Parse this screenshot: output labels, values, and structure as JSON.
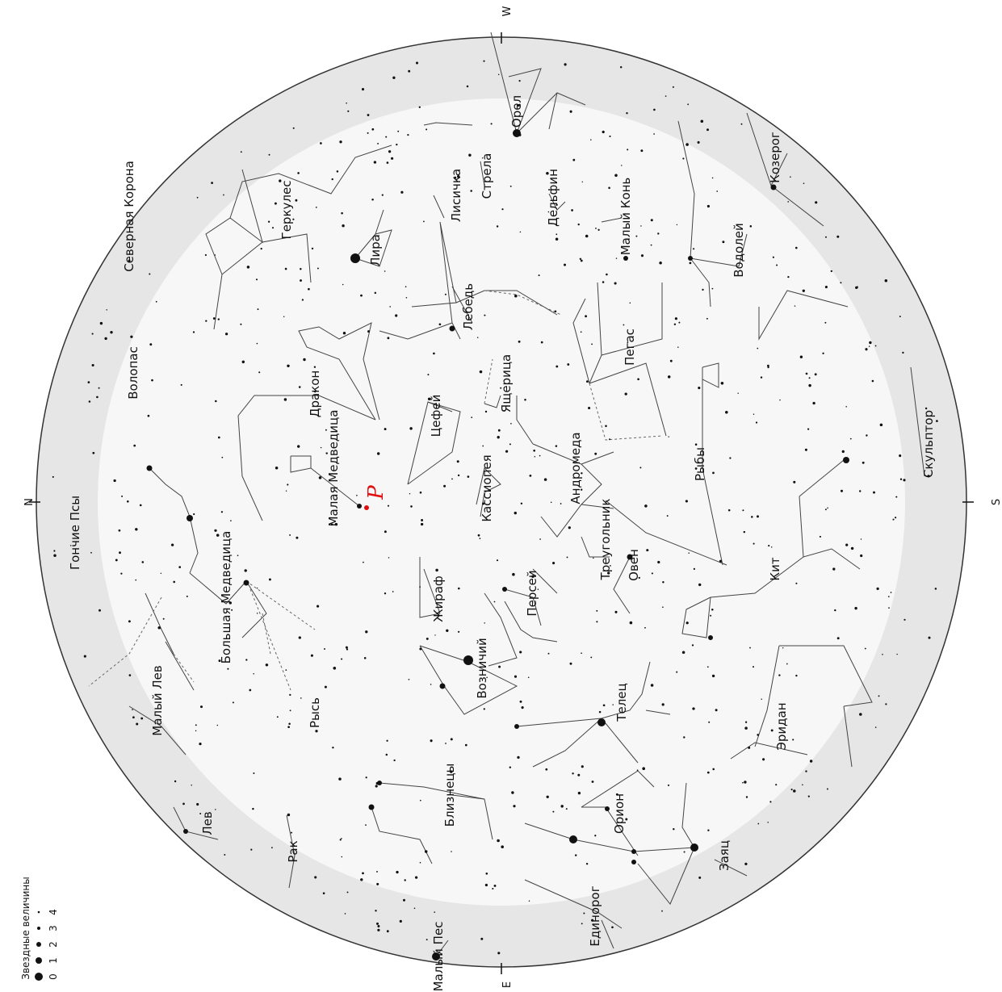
{
  "cardinals": {
    "n": "N",
    "s": "S",
    "w": "W",
    "e": "E"
  },
  "pole_label": "P",
  "colors": {
    "sky_band": "#e6e6e6",
    "sky_inner": "#f6f6f6",
    "pole": "#e01010",
    "lines": "#444444"
  },
  "constellations": [
    "Гончие Псы",
    "Волопас",
    "Северная Корона",
    "Геркулес",
    "Лира",
    "Лисичка",
    "Стрела",
    "Орел",
    "Дельфин",
    "Малый Конь",
    "Козерог",
    "Водолей",
    "Лебедь",
    "Пегас",
    "Ящерица",
    "Цефей",
    "Дракон",
    "Малая Медведица",
    "Кассиопея",
    "Андромеда",
    "Рыбы",
    "Скульптор",
    "Большая Медведица",
    "Треугольник",
    "Персей",
    "Жираф",
    "Овен",
    "Кит",
    "Малый Лев",
    "Рысь",
    "Возничий",
    "Телец",
    "Эридан",
    "Близнецы",
    "Орион",
    "Лев",
    "Рак",
    "Заяц",
    "Единорог",
    "Малый Пес"
  ],
  "legend": {
    "title": "Звездные величины",
    "magnitudes": [
      "0",
      "1",
      "2",
      "3",
      "4"
    ]
  }
}
